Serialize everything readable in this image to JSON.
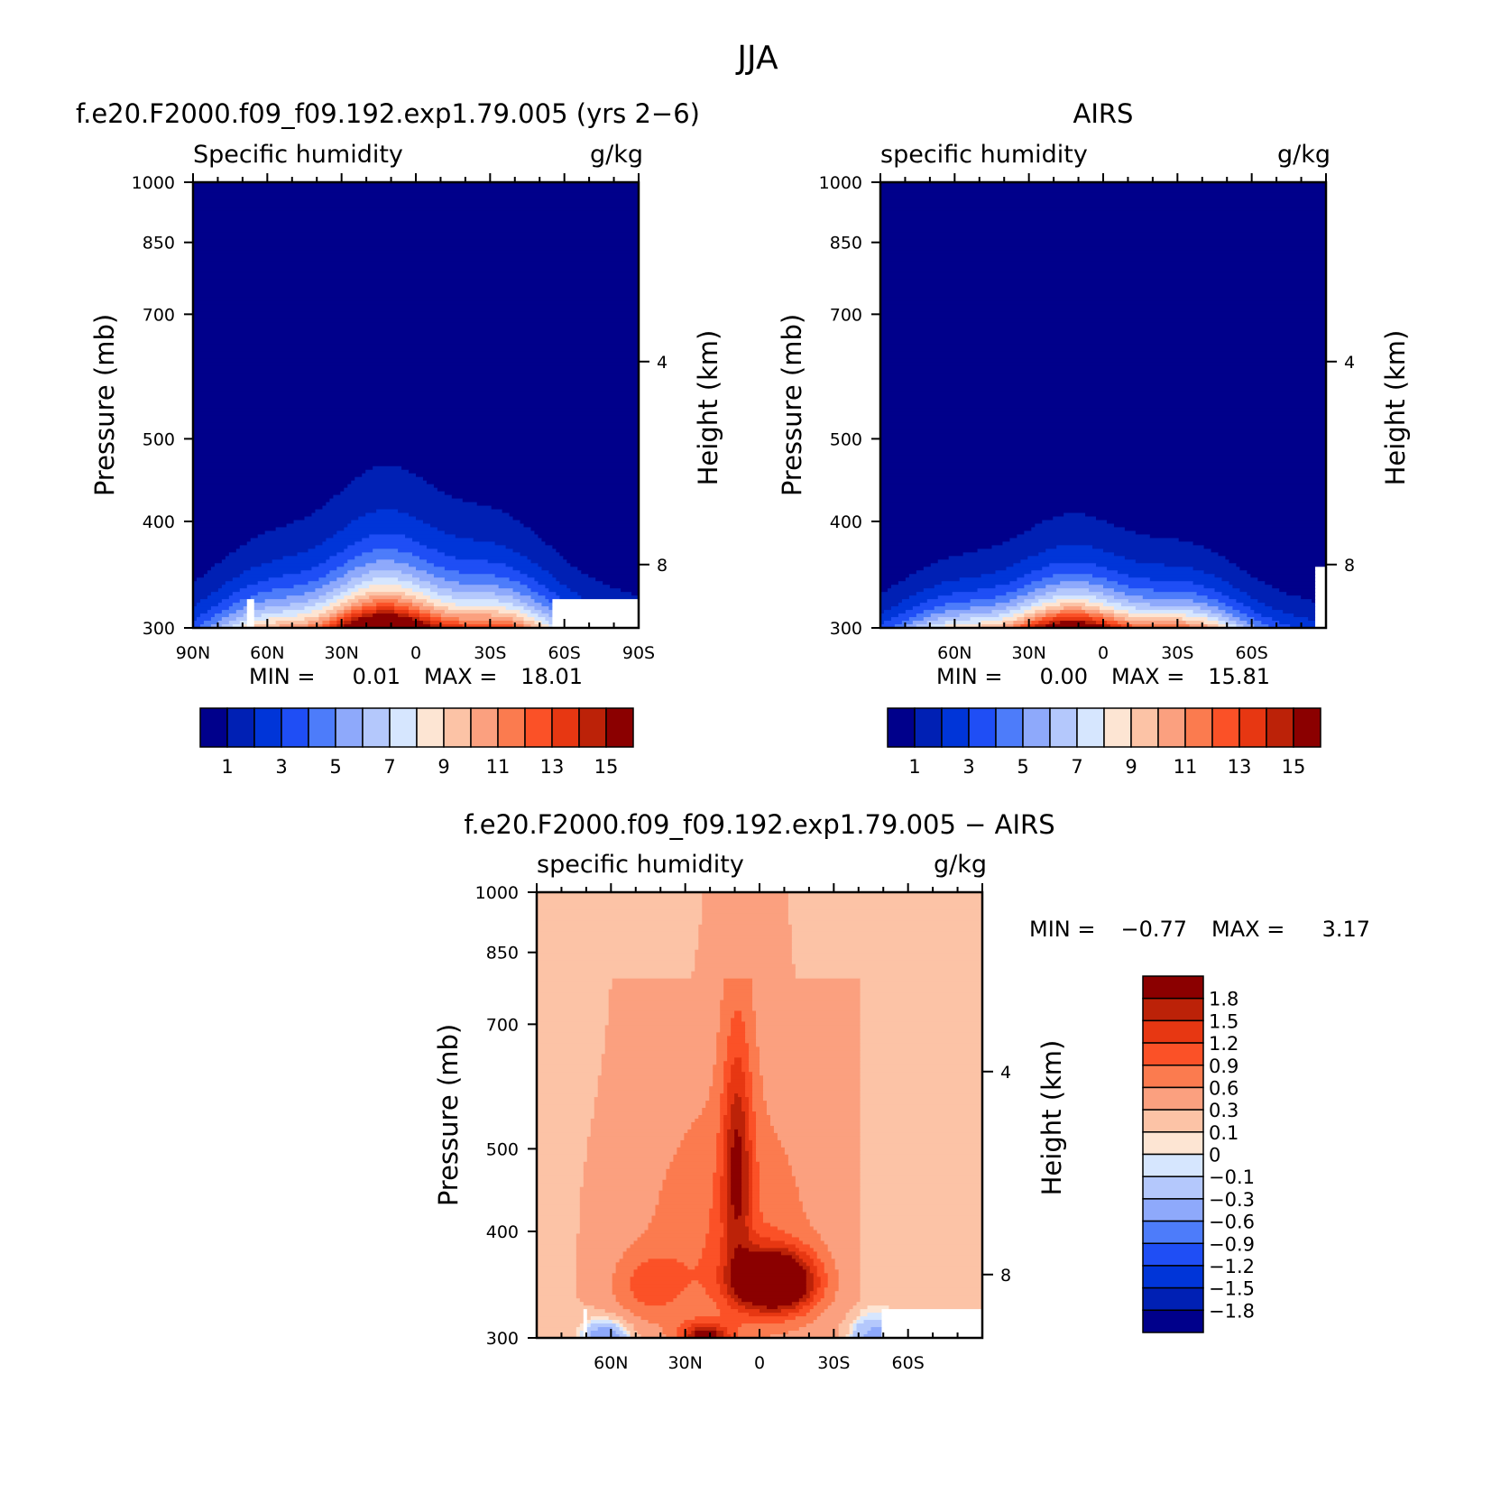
{
  "figure": {
    "title": "JJA",
    "colors": {
      "abs_levels": [
        "#00008b",
        "#0020b4",
        "#0035d8",
        "#1f4ef5",
        "#4d7cfa",
        "#8ea9fb",
        "#b4c8fc",
        "#d6e6fe",
        "#fde5d3",
        "#fcc3a6",
        "#fba07f",
        "#fb7b4f",
        "#fb5127",
        "#e73712",
        "#bc2208",
        "#8b0000"
      ],
      "diff_levels": [
        "#00008b",
        "#0020b4",
        "#0035d8",
        "#1f4ef5",
        "#4d7cfa",
        "#8ea9fb",
        "#b4c8fc",
        "#d6e6fe",
        "#fde5d3",
        "#fcc3a6",
        "#fba07f",
        "#fb7b4f",
        "#fb5127",
        "#e73712",
        "#bc2208",
        "#8b0000"
      ]
    }
  },
  "chart_data": [
    {
      "id": "model",
      "type": "heatmap",
      "title": "f.e20.F2000.f09_f09.192.exp1.79.005 (yrs 2−6)",
      "variable_label": "Specific humidity",
      "units": "g/kg",
      "ylabel": "Pressure (mb)",
      "y2label": "Height (km)",
      "xlim": [
        90,
        -90
      ],
      "ylim": [
        1000,
        300
      ],
      "y_scale": "log",
      "yticks": [
        300,
        400,
        500,
        700,
        850,
        1000
      ],
      "y2ticks": [
        {
          "value": 8,
          "p": 356
        },
        {
          "value": 4,
          "p": 616
        }
      ],
      "xticks": [
        {
          "v": 90,
          "label": "90N"
        },
        {
          "v": 60,
          "label": "60N"
        },
        {
          "v": 30,
          "label": "30N"
        },
        {
          "v": 0,
          "label": "0"
        },
        {
          "v": -30,
          "label": "30S"
        },
        {
          "v": -60,
          "label": "60S"
        },
        {
          "v": -90,
          "label": "90S"
        }
      ],
      "min_label": "MIN =",
      "min": "0.01",
      "max_label": "MAX =",
      "max": "18.01",
      "colorbar": {
        "orientation": "horizontal",
        "labels": [
          "1",
          "3",
          "5",
          "7",
          "9",
          "11",
          "13",
          "15"
        ]
      },
      "contour_surface": {
        "peak_lat": 7,
        "peak_value": 18.01,
        "column_scale_height_mb": 118
      },
      "missing_regions": [
        {
          "lat": [
            -55,
            -90
          ],
          "p": [
            925,
            1000
          ]
        },
        {
          "lat": [
            68,
            66
          ],
          "p": [
            925,
            1000
          ]
        }
      ]
    },
    {
      "id": "obs",
      "type": "heatmap",
      "title": "AIRS",
      "variable_label": "specific humidity",
      "units": "g/kg",
      "ylabel": "Pressure (mb)",
      "y2label": "Height (km)",
      "xlim": [
        90,
        -90
      ],
      "ylim": [
        1000,
        300
      ],
      "y_scale": "log",
      "yticks": [
        300,
        400,
        500,
        700,
        850,
        1000
      ],
      "y2ticks": [
        {
          "value": 8,
          "p": 356
        },
        {
          "value": 4,
          "p": 616
        }
      ],
      "xticks": [
        {
          "v": 60,
          "label": "60N"
        },
        {
          "v": 30,
          "label": "30N"
        },
        {
          "v": 0,
          "label": "0"
        },
        {
          "v": -30,
          "label": "30S"
        },
        {
          "v": -60,
          "label": "60S"
        }
      ],
      "min_label": "MIN =",
      "min": "0.00",
      "max_label": "MAX =",
      "max": "15.81",
      "colorbar": {
        "orientation": "horizontal",
        "labels": [
          "1",
          "3",
          "5",
          "7",
          "9",
          "11",
          "13",
          "15"
        ]
      },
      "contour_surface": {
        "peak_lat": 7,
        "peak_value": 15.81,
        "column_scale_height_mb": 92
      },
      "missing_regions": [
        {
          "lat": [
            -86,
            -90
          ],
          "p": [
            850,
            1000
          ]
        }
      ]
    },
    {
      "id": "diff",
      "type": "heatmap",
      "title": "f.e20.F2000.f09_f09.192.exp1.79.005 − AIRS",
      "variable_label": "specific humidity",
      "units": "g/kg",
      "ylabel": "Pressure (mb)",
      "y2label": "Height (km)",
      "xlim": [
        90,
        -90
      ],
      "ylim": [
        1000,
        300
      ],
      "y_scale": "log",
      "yticks": [
        300,
        400,
        500,
        700,
        850,
        1000
      ],
      "y2ticks": [
        {
          "value": 8,
          "p": 356
        },
        {
          "value": 4,
          "p": 616
        }
      ],
      "xticks": [
        {
          "v": 60,
          "label": "60N"
        },
        {
          "v": 30,
          "label": "30N"
        },
        {
          "v": 0,
          "label": "0"
        },
        {
          "v": -30,
          "label": "30S"
        },
        {
          "v": -60,
          "label": "60S"
        }
      ],
      "min_label": "MIN =",
      "min": "−0.77",
      "max_label": "MAX =",
      "max": "3.17",
      "colorbar": {
        "orientation": "vertical",
        "labels": [
          "1.8",
          "1.5",
          "1.2",
          "0.9",
          "0.6",
          "0.3",
          "0.1",
          "0",
          "−0.1",
          "−0.3",
          "−0.6",
          "−0.9",
          "−1.2",
          "−1.5",
          "−1.8"
        ]
      },
      "contour_levels": [
        -1.8,
        -1.5,
        -1.2,
        -0.9,
        -0.6,
        -0.3,
        -0.1,
        0,
        0.1,
        0.3,
        0.6,
        0.9,
        1.2,
        1.5,
        1.8
      ],
      "missing_regions": [
        {
          "lat": [
            -50,
            -90
          ],
          "p": [
            925,
            1000
          ]
        },
        {
          "lat": [
            71,
            69
          ],
          "p": [
            925,
            1000
          ]
        }
      ]
    }
  ]
}
